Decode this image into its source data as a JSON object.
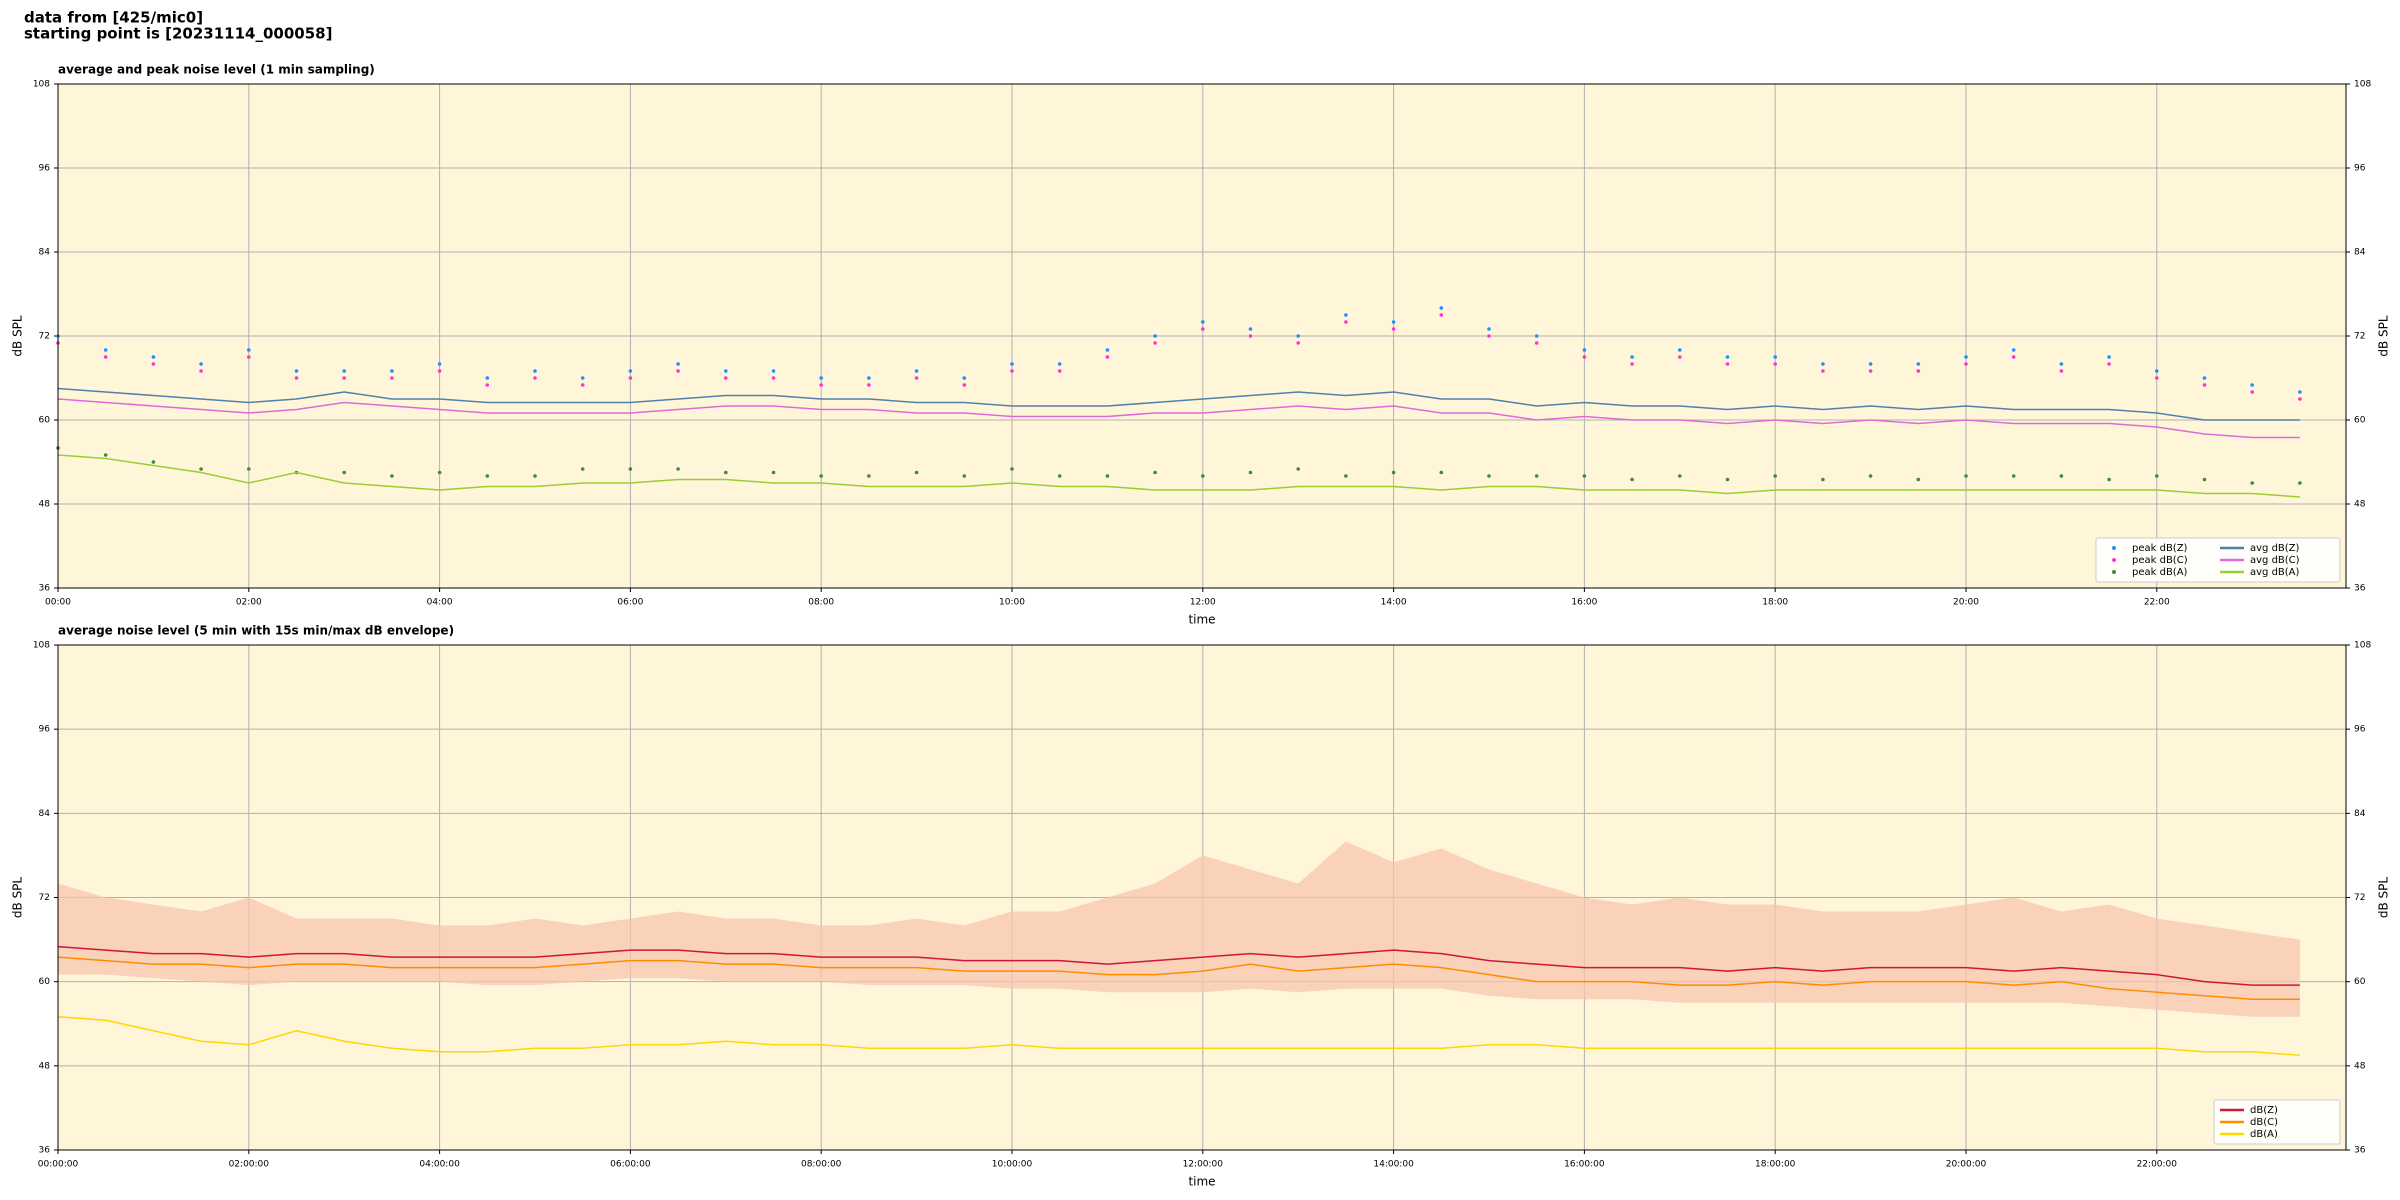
{
  "header": {
    "line1": "data from [425/mic0]",
    "line2": "starting point is [20231114_000058]"
  },
  "chart_data": [
    {
      "type": "line",
      "title": "average and peak noise level (1 min sampling)",
      "xlabel": "time",
      "ylabel": "dB SPL",
      "x": [
        "00:00",
        "00:30",
        "01:00",
        "01:30",
        "02:00",
        "02:30",
        "03:00",
        "03:30",
        "04:00",
        "04:30",
        "05:00",
        "05:30",
        "06:00",
        "06:30",
        "07:00",
        "07:30",
        "08:00",
        "08:30",
        "09:00",
        "09:30",
        "10:00",
        "10:30",
        "11:00",
        "11:30",
        "12:00",
        "12:30",
        "13:00",
        "13:30",
        "14:00",
        "14:30",
        "15:00",
        "15:30",
        "16:00",
        "16:30",
        "17:00",
        "17:30",
        "18:00",
        "18:30",
        "19:00",
        "19:30",
        "20:00",
        "20:30",
        "21:00",
        "21:30",
        "22:00",
        "22:30",
        "23:00",
        "23:30"
      ],
      "xlim": [
        "00:00",
        "23:59"
      ],
      "xticks": [
        "00:00",
        "02:00",
        "04:00",
        "06:00",
        "08:00",
        "10:00",
        "12:00",
        "14:00",
        "16:00",
        "18:00",
        "20:00",
        "22:00"
      ],
      "ylim": [
        36,
        108
      ],
      "yticks": [
        36,
        48,
        60,
        72,
        84,
        96,
        108
      ],
      "grid": true,
      "legend": "lower right",
      "series": [
        {
          "name": "peak dB(Z)",
          "color": "#1e90ff",
          "marker": "dot",
          "values": [
            72,
            70,
            69,
            68,
            70,
            67,
            67,
            67,
            68,
            66,
            67,
            66,
            67,
            68,
            67,
            67,
            66,
            66,
            67,
            66,
            68,
            68,
            70,
            72,
            74,
            73,
            72,
            75,
            74,
            76,
            73,
            72,
            70,
            69,
            70,
            69,
            69,
            68,
            68,
            68,
            69,
            70,
            68,
            69,
            67,
            66,
            65,
            64
          ]
        },
        {
          "name": "peak dB(C)",
          "color": "#ff33cc",
          "marker": "dot",
          "values": [
            71,
            69,
            68,
            67,
            69,
            66,
            66,
            66,
            67,
            65,
            66,
            65,
            66,
            67,
            66,
            66,
            65,
            65,
            66,
            65,
            67,
            67,
            69,
            71,
            73,
            72,
            71,
            74,
            73,
            75,
            72,
            71,
            69,
            68,
            69,
            68,
            68,
            67,
            67,
            67,
            68,
            69,
            67,
            68,
            66,
            65,
            64,
            63
          ]
        },
        {
          "name": "peak dB(A)",
          "color": "#3c8c3c",
          "marker": "dot",
          "values": [
            56,
            55,
            54,
            53,
            53,
            52.5,
            52.5,
            52,
            52.5,
            52,
            52,
            53,
            53,
            53,
            52.5,
            52.5,
            52,
            52,
            52.5,
            52,
            53,
            52,
            52,
            52.5,
            52,
            52.5,
            53,
            52,
            52.5,
            52.5,
            52,
            52,
            52,
            51.5,
            52,
            51.5,
            52,
            51.5,
            52,
            51.5,
            52,
            52,
            52,
            51.5,
            52,
            51.5,
            51,
            51
          ]
        },
        {
          "name": "avg dB(Z)",
          "color": "#4f81a8",
          "marker": "line",
          "values": [
            64.5,
            64,
            63.5,
            63,
            62.5,
            63,
            64,
            63,
            63,
            62.5,
            62.5,
            62.5,
            62.5,
            63,
            63.5,
            63.5,
            63,
            63,
            62.5,
            62.5,
            62,
            62,
            62,
            62.5,
            63,
            63.5,
            64,
            63.5,
            64,
            63,
            63,
            62,
            62.5,
            62,
            62,
            61.5,
            62,
            61.5,
            62,
            61.5,
            62,
            61.5,
            61.5,
            61.5,
            61,
            60,
            60,
            60
          ]
        },
        {
          "name": "avg dB(C)",
          "color": "#e069d6",
          "marker": "line",
          "values": [
            63,
            62.5,
            62,
            61.5,
            61,
            61.5,
            62.5,
            62,
            61.5,
            61,
            61,
            61,
            61,
            61.5,
            62,
            62,
            61.5,
            61.5,
            61,
            61,
            60.5,
            60.5,
            60.5,
            61,
            61,
            61.5,
            62,
            61.5,
            62,
            61,
            61,
            60,
            60.5,
            60,
            60,
            59.5,
            60,
            59.5,
            60,
            59.5,
            60,
            59.5,
            59.5,
            59.5,
            59,
            58,
            57.5,
            57.5
          ]
        },
        {
          "name": "avg dB(A)",
          "color": "#9acd32",
          "marker": "line",
          "values": [
            55,
            54.5,
            53.5,
            52.5,
            51,
            52.5,
            51,
            50.5,
            50,
            50.5,
            50.5,
            51,
            51,
            51.5,
            51.5,
            51,
            51,
            50.5,
            50.5,
            50.5,
            51,
            50.5,
            50.5,
            50,
            50,
            50,
            50.5,
            50.5,
            50.5,
            50,
            50.5,
            50.5,
            50,
            50,
            50,
            49.5,
            50,
            50,
            50,
            50,
            50,
            50,
            50,
            50,
            50,
            49.5,
            49.5,
            49
          ]
        }
      ]
    },
    {
      "type": "line",
      "title": "average noise level (5 min with 15s min/max dB envelope)",
      "xlabel": "time",
      "ylabel": "dB SPL",
      "x": [
        "00:00:00",
        "00:30:00",
        "01:00:00",
        "01:30:00",
        "02:00:00",
        "02:30:00",
        "03:00:00",
        "03:30:00",
        "04:00:00",
        "04:30:00",
        "05:00:00",
        "05:30:00",
        "06:00:00",
        "06:30:00",
        "07:00:00",
        "07:30:00",
        "08:00:00",
        "08:30:00",
        "09:00:00",
        "09:30:00",
        "10:00:00",
        "10:30:00",
        "11:00:00",
        "11:30:00",
        "12:00:00",
        "12:30:00",
        "13:00:00",
        "13:30:00",
        "14:00:00",
        "14:30:00",
        "15:00:00",
        "15:30:00",
        "16:00:00",
        "16:30:00",
        "17:00:00",
        "17:30:00",
        "18:00:00",
        "18:30:00",
        "19:00:00",
        "19:30:00",
        "20:00:00",
        "20:30:00",
        "21:00:00",
        "21:30:00",
        "22:00:00",
        "22:30:00",
        "23:00:00",
        "23:30:00"
      ],
      "xlim": [
        "00:00:00",
        "23:59:00"
      ],
      "xticks": [
        "00:00:00",
        "02:00:00",
        "04:00:00",
        "06:00:00",
        "08:00:00",
        "10:00:00",
        "12:00:00",
        "14:00:00",
        "16:00:00",
        "18:00:00",
        "20:00:00",
        "22:00:00"
      ],
      "ylim": [
        36,
        108
      ],
      "yticks": [
        36,
        48,
        60,
        72,
        84,
        96,
        108
      ],
      "grid": true,
      "legend": "lower right",
      "envelope": {
        "color": "#f7c6ae",
        "upper": [
          74,
          72,
          71,
          70,
          72,
          69,
          69,
          69,
          68,
          68,
          69,
          68,
          69,
          70,
          69,
          69,
          68,
          68,
          69,
          68,
          70,
          70,
          72,
          74,
          78,
          76,
          74,
          80,
          77,
          79,
          76,
          74,
          72,
          71,
          72,
          71,
          71,
          70,
          70,
          70,
          71,
          72,
          70,
          71,
          69,
          68,
          67,
          66
        ],
        "lower": [
          61,
          61,
          60.5,
          60,
          59.5,
          60,
          60,
          60,
          60,
          59.5,
          59.5,
          60,
          60.5,
          60.5,
          60,
          60,
          60,
          59.5,
          59.5,
          59.5,
          59,
          59,
          58.5,
          58.5,
          58.5,
          59,
          58.5,
          59,
          59,
          59,
          58,
          57.5,
          57.5,
          57.5,
          57,
          57,
          57,
          57,
          57,
          57,
          57,
          57,
          57,
          56.5,
          56,
          55.5,
          55,
          55
        ]
      },
      "series": [
        {
          "name": "dB(Z)",
          "color": "#d2143c",
          "marker": "line",
          "values": [
            65,
            64.5,
            64,
            64,
            63.5,
            64,
            64,
            63.5,
            63.5,
            63.5,
            63.5,
            64,
            64.5,
            64.5,
            64,
            64,
            63.5,
            63.5,
            63.5,
            63,
            63,
            63,
            62.5,
            63,
            63.5,
            64,
            63.5,
            64,
            64.5,
            64,
            63,
            62.5,
            62,
            62,
            62,
            61.5,
            62,
            61.5,
            62,
            62,
            62,
            61.5,
            62,
            61.5,
            61,
            60,
            59.5,
            59.5
          ]
        },
        {
          "name": "dB(C)",
          "color": "#ff8c00",
          "marker": "line",
          "values": [
            63.5,
            63,
            62.5,
            62.5,
            62,
            62.5,
            62.5,
            62,
            62,
            62,
            62,
            62.5,
            63,
            63,
            62.5,
            62.5,
            62,
            62,
            62,
            61.5,
            61.5,
            61.5,
            61,
            61,
            61.5,
            62.5,
            61.5,
            62,
            62.5,
            62,
            61,
            60,
            60,
            60,
            59.5,
            59.5,
            60,
            59.5,
            60,
            60,
            60,
            59.5,
            60,
            59,
            58.5,
            58,
            57.5,
            57.5
          ]
        },
        {
          "name": "dB(A)",
          "color": "#ffd700",
          "marker": "line",
          "values": [
            55,
            54.5,
            53,
            51.5,
            51,
            53,
            51.5,
            50.5,
            50,
            50,
            50.5,
            50.5,
            51,
            51,
            51.5,
            51,
            51,
            50.5,
            50.5,
            50.5,
            51,
            50.5,
            50.5,
            50.5,
            50.5,
            50.5,
            50.5,
            50.5,
            50.5,
            50.5,
            51,
            51,
            50.5,
            50.5,
            50.5,
            50.5,
            50.5,
            50.5,
            50.5,
            50.5,
            50.5,
            50.5,
            50.5,
            50.5,
            50.5,
            50,
            50,
            49.5
          ]
        }
      ]
    }
  ]
}
